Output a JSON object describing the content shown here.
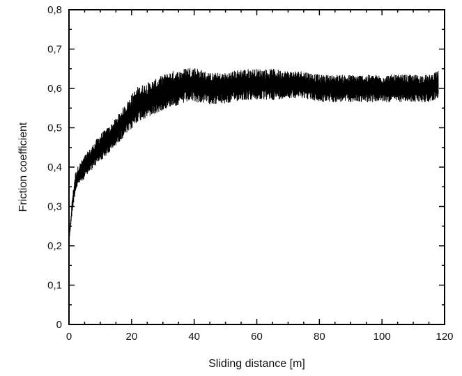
{
  "chart_data": {
    "type": "line",
    "title": "",
    "xlabel": "Sliding distance  [m]",
    "ylabel": "Friction coefficient",
    "xlim": [
      0,
      120
    ],
    "ylim": [
      0,
      0.8
    ],
    "x_ticks": [
      0,
      20,
      40,
      60,
      80,
      100,
      120
    ],
    "y_ticks": [
      0,
      0.1,
      0.2,
      0.3,
      0.4,
      0.5,
      0.6,
      0.7,
      0.8
    ],
    "x_tick_labels": [
      "0",
      "20",
      "40",
      "60",
      "80",
      "100",
      "120"
    ],
    "y_tick_labels": [
      "0",
      "0,1",
      "0,2",
      "0,3",
      "0,4",
      "0,5",
      "0,6",
      "0,7",
      "0,8"
    ],
    "grid": false,
    "legend": "none",
    "line_color": "#000000",
    "series": [
      {
        "x": [
          0,
          1,
          2,
          3,
          5,
          7,
          10,
          13,
          15,
          18,
          20,
          22,
          25,
          28,
          30,
          33,
          35,
          38,
          40,
          45,
          50,
          55,
          60,
          65,
          70,
          75,
          80,
          85,
          90,
          95,
          100,
          105,
          110,
          115,
          118
        ],
        "values": [
          0.21,
          0.3,
          0.36,
          0.38,
          0.4,
          0.42,
          0.45,
          0.47,
          0.49,
          0.52,
          0.54,
          0.56,
          0.57,
          0.58,
          0.59,
          0.6,
          0.6,
          0.61,
          0.61,
          0.6,
          0.6,
          0.61,
          0.61,
          0.61,
          0.61,
          0.61,
          0.6,
          0.6,
          0.6,
          0.6,
          0.6,
          0.6,
          0.6,
          0.6,
          0.61
        ],
        "noise_amplitude": [
          0.0,
          0.02,
          0.025,
          0.025,
          0.03,
          0.03,
          0.035,
          0.035,
          0.035,
          0.04,
          0.045,
          0.045,
          0.045,
          0.045,
          0.045,
          0.045,
          0.045,
          0.045,
          0.045,
          0.04,
          0.04,
          0.04,
          0.04,
          0.04,
          0.035,
          0.035,
          0.035,
          0.035,
          0.035,
          0.035,
          0.035,
          0.035,
          0.035,
          0.035,
          0.035
        ]
      }
    ]
  }
}
